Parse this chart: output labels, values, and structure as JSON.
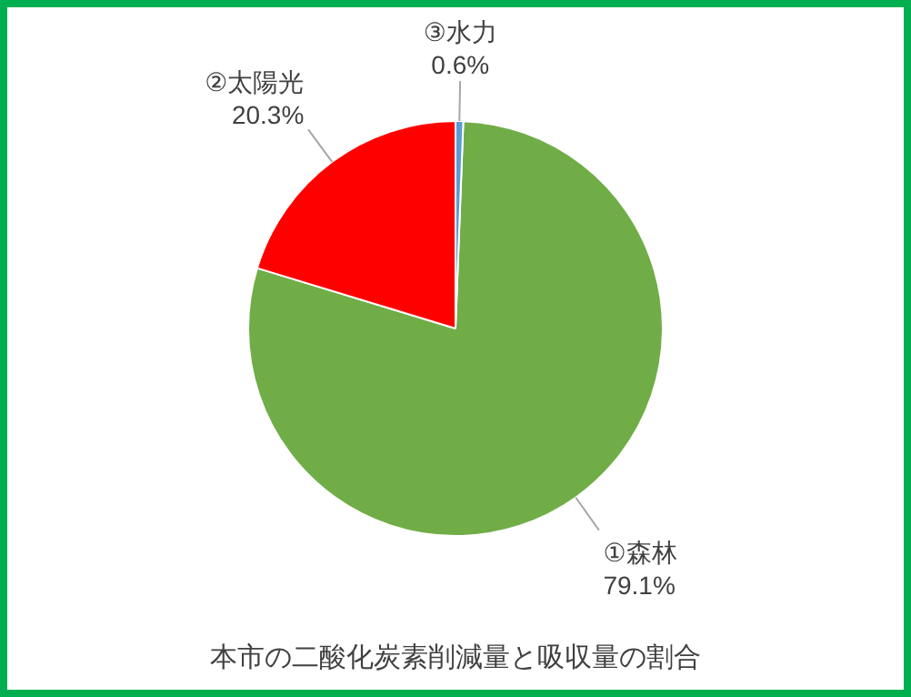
{
  "chart_data": {
    "type": "pie",
    "title": "本市の二酸化炭素削減量と吸収量の割合",
    "categories": [
      "①森林",
      "②太陽光",
      "③水力"
    ],
    "values": [
      79.1,
      20.3,
      0.6
    ],
    "colors": [
      "#70ad47",
      "#ff0000",
      "#5b9bd5"
    ],
    "value_labels": [
      "79.1%",
      "20.3%",
      "0.6%"
    ],
    "legend": false
  }
}
